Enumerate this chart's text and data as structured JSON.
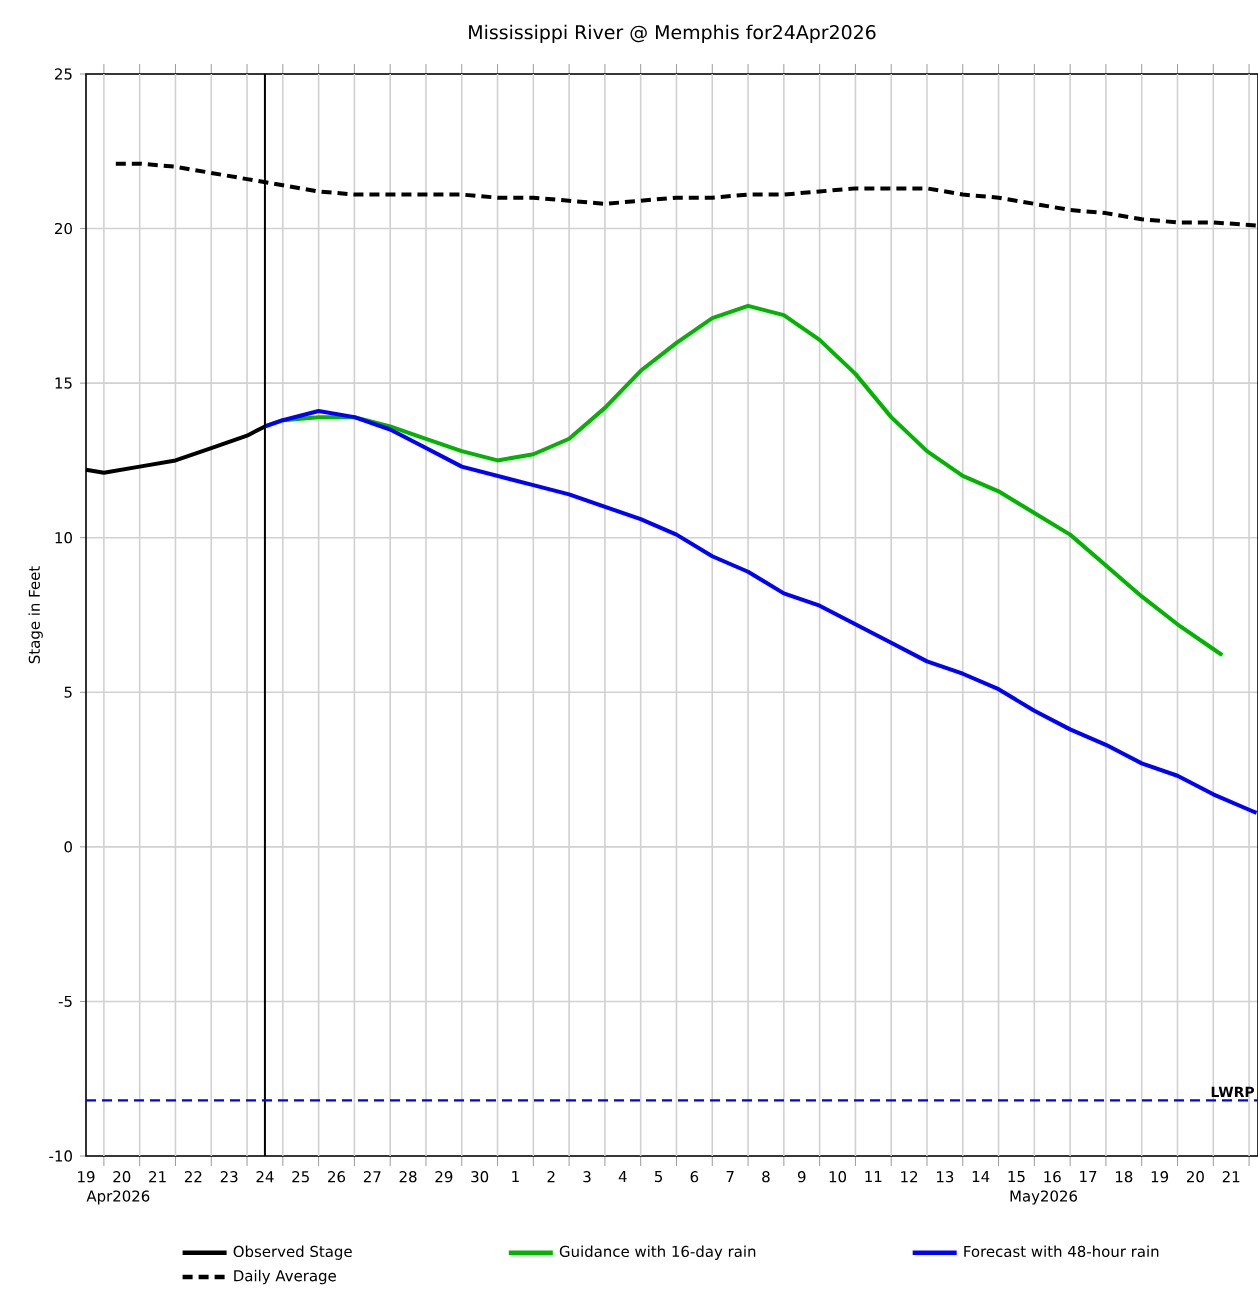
{
  "chart_data": {
    "type": "line",
    "title": "Mississippi River @ Memphis for24Apr2026",
    "ylabel": "Stage in Feet",
    "xlim": [
      "2026-04-19T12:00",
      "2026-05-22T06:00"
    ],
    "ylim": [
      -10,
      25
    ],
    "yticks": [
      -10,
      -5,
      0,
      5,
      10,
      15,
      20,
      25
    ],
    "xticks": [
      {
        "value": "2026-04-19T12:00",
        "label": "19"
      },
      {
        "value": "2026-04-20T12:00",
        "label": "20"
      },
      {
        "value": "2026-04-21T12:00",
        "label": "21"
      },
      {
        "value": "2026-04-22T12:00",
        "label": "22"
      },
      {
        "value": "2026-04-23T12:00",
        "label": "23"
      },
      {
        "value": "2026-04-24T12:00",
        "label": "24"
      },
      {
        "value": "2026-04-25T12:00",
        "label": "25"
      },
      {
        "value": "2026-04-26T12:00",
        "label": "26"
      },
      {
        "value": "2026-04-27T12:00",
        "label": "27"
      },
      {
        "value": "2026-04-28T12:00",
        "label": "28"
      },
      {
        "value": "2026-04-29T12:00",
        "label": "29"
      },
      {
        "value": "2026-04-30T12:00",
        "label": "30"
      },
      {
        "value": "2026-05-01T12:00",
        "label": "1"
      },
      {
        "value": "2026-05-02T12:00",
        "label": "2"
      },
      {
        "value": "2026-05-03T12:00",
        "label": "3"
      },
      {
        "value": "2026-05-04T12:00",
        "label": "4"
      },
      {
        "value": "2026-05-05T12:00",
        "label": "5"
      },
      {
        "value": "2026-05-06T12:00",
        "label": "6"
      },
      {
        "value": "2026-05-07T12:00",
        "label": "7"
      },
      {
        "value": "2026-05-08T12:00",
        "label": "8"
      },
      {
        "value": "2026-05-09T12:00",
        "label": "9"
      },
      {
        "value": "2026-05-10T12:00",
        "label": "10"
      },
      {
        "value": "2026-05-11T12:00",
        "label": "11"
      },
      {
        "value": "2026-05-12T12:00",
        "label": "12"
      },
      {
        "value": "2026-05-13T12:00",
        "label": "13"
      },
      {
        "value": "2026-05-14T12:00",
        "label": "14"
      },
      {
        "value": "2026-05-15T12:00",
        "label": "15"
      },
      {
        "value": "2026-05-16T12:00",
        "label": "16"
      },
      {
        "value": "2026-05-17T12:00",
        "label": "17"
      },
      {
        "value": "2026-05-18T12:00",
        "label": "18"
      },
      {
        "value": "2026-05-19T12:00",
        "label": "19"
      },
      {
        "value": "2026-05-20T12:00",
        "label": "20"
      },
      {
        "value": "2026-05-21T12:00",
        "label": "21"
      },
      {
        "value": "2026-04-20",
        "label": null
      },
      {
        "value": "2026-04-21",
        "label": null
      },
      {
        "value": "2026-04-22",
        "label": null
      },
      {
        "value": "2026-04-23",
        "label": null
      },
      {
        "value": "2026-04-24",
        "label": null
      },
      {
        "value": "2026-04-25",
        "label": null
      },
      {
        "value": "2026-04-26",
        "label": null
      },
      {
        "value": "2026-04-27",
        "label": null
      },
      {
        "value": "2026-04-28",
        "label": null
      },
      {
        "value": "2026-04-29",
        "label": null
      },
      {
        "value": "2026-04-30",
        "label": null
      },
      {
        "value": "2026-05-01",
        "label": null
      },
      {
        "value": "2026-05-02",
        "label": null
      },
      {
        "value": "2026-05-03",
        "label": null
      },
      {
        "value": "2026-05-04",
        "label": null
      },
      {
        "value": "2026-05-05",
        "label": null
      },
      {
        "value": "2026-05-06",
        "label": null
      },
      {
        "value": "2026-05-07",
        "label": null
      },
      {
        "value": "2026-05-08",
        "label": null
      },
      {
        "value": "2026-05-09",
        "label": null
      },
      {
        "value": "2026-05-10",
        "label": null
      },
      {
        "value": "2026-05-11",
        "label": null
      },
      {
        "value": "2026-05-12",
        "label": null
      },
      {
        "value": "2026-05-13",
        "label": null
      },
      {
        "value": "2026-05-14",
        "label": null
      },
      {
        "value": "2026-05-15",
        "label": null
      },
      {
        "value": "2026-05-16",
        "label": null
      },
      {
        "value": "2026-05-17",
        "label": null
      },
      {
        "value": "2026-05-18",
        "label": null
      },
      {
        "value": "2026-05-19",
        "label": null
      },
      {
        "value": "2026-05-20",
        "label": null
      },
      {
        "value": "2026-05-21",
        "label": null
      },
      {
        "value": "2026-05-22",
        "label": null
      }
    ],
    "grid": true,
    "legend": "bottom",
    "series": [
      {
        "name": "Observed Stage",
        "color": "#000000",
        "x": [
          "2026-04-19T12:00",
          "2026-04-20",
          "2026-04-21",
          "2026-04-22",
          "2026-04-23",
          "2026-04-24",
          "2026-04-24T12:00"
        ],
        "values": [
          12.2,
          12.1,
          12.3,
          12.5,
          12.9,
          13.3,
          13.6
        ]
      },
      {
        "name": "Guidance with 16-day rain",
        "color": "#00b400",
        "x": [
          "2026-04-24T12:00",
          "2026-04-25",
          "2026-04-26",
          "2026-04-27",
          "2026-04-28",
          "2026-04-29",
          "2026-04-30",
          "2026-05-01",
          "2026-05-02",
          "2026-05-03",
          "2026-05-04",
          "2026-05-05",
          "2026-05-06",
          "2026-05-07",
          "2026-05-08",
          "2026-05-09",
          "2026-05-10",
          "2026-05-11",
          "2026-05-12",
          "2026-05-13",
          "2026-05-14",
          "2026-05-15",
          "2026-05-16",
          "2026-05-17",
          "2026-05-18",
          "2026-05-19",
          "2026-05-20",
          "2026-05-21",
          "2026-05-21T06:00"
        ],
        "values": [
          13.6,
          13.8,
          13.9,
          13.9,
          13.6,
          13.2,
          12.8,
          12.5,
          12.7,
          13.2,
          14.2,
          15.4,
          16.3,
          17.1,
          17.5,
          17.2,
          16.4,
          15.3,
          13.9,
          12.8,
          12.0,
          11.5,
          10.8,
          10.1,
          9.1,
          8.1,
          7.2,
          6.4,
          6.2
        ]
      },
      {
        "name": "Forecast with 48-hour rain",
        "color": "#0000ff",
        "x": [
          "2026-04-24T12:00",
          "2026-04-25",
          "2026-04-26",
          "2026-04-27",
          "2026-04-28",
          "2026-04-29",
          "2026-04-30",
          "2026-05-01",
          "2026-05-02",
          "2026-05-03",
          "2026-05-04",
          "2026-05-05",
          "2026-05-06",
          "2026-05-07",
          "2026-05-08",
          "2026-05-09",
          "2026-05-10",
          "2026-05-11",
          "2026-05-12",
          "2026-05-13",
          "2026-05-14",
          "2026-05-15",
          "2026-05-16",
          "2026-05-17",
          "2026-05-18",
          "2026-05-19",
          "2026-05-20",
          "2026-05-21",
          "2026-05-22",
          "2026-05-22T05:00"
        ],
        "values": [
          13.6,
          13.8,
          14.1,
          13.9,
          13.5,
          12.9,
          12.3,
          12.0,
          11.7,
          11.4,
          11.0,
          10.6,
          10.1,
          9.4,
          8.9,
          8.2,
          7.8,
          7.2,
          6.6,
          6.0,
          5.6,
          5.1,
          4.4,
          3.8,
          3.3,
          2.7,
          2.3,
          1.7,
          1.2,
          1.1
        ]
      },
      {
        "name": "Daily Average",
        "color": "#000000",
        "line_style": "dashed",
        "x": [
          "2026-04-20T08:00",
          "2026-04-21",
          "2026-04-22",
          "2026-04-23",
          "2026-04-24",
          "2026-04-25",
          "2026-04-26",
          "2026-04-27",
          "2026-04-28",
          "2026-04-29",
          "2026-04-30",
          "2026-05-01",
          "2026-05-02",
          "2026-05-03",
          "2026-05-04",
          "2026-05-05",
          "2026-05-06",
          "2026-05-07",
          "2026-05-08",
          "2026-05-09",
          "2026-05-10",
          "2026-05-11",
          "2026-05-12",
          "2026-05-13",
          "2026-05-14",
          "2026-05-15",
          "2026-05-16",
          "2026-05-17",
          "2026-05-18",
          "2026-05-19",
          "2026-05-20",
          "2026-05-21",
          "2026-05-22T05:00"
        ],
        "values": [
          22.1,
          22.1,
          22.0,
          21.8,
          21.6,
          21.4,
          21.2,
          21.1,
          21.1,
          21.1,
          21.1,
          21.0,
          21.0,
          20.9,
          20.8,
          20.9,
          21.0,
          21.0,
          21.1,
          21.1,
          21.2,
          21.3,
          21.3,
          21.3,
          21.1,
          21.0,
          20.8,
          20.6,
          20.5,
          20.3,
          20.2,
          20.2,
          20.1
        ]
      }
    ],
    "ref_lines": [
      {
        "axis": "x",
        "value": "2026-04-24T12:00",
        "color": "#000000",
        "line_style": "solid"
      },
      {
        "axis": "y",
        "value": -8.2,
        "label": "LWRP",
        "color": "#0000ff",
        "line_style": "dashed"
      }
    ],
    "annotations": [
      "Apr2026",
      "May2026"
    ]
  }
}
